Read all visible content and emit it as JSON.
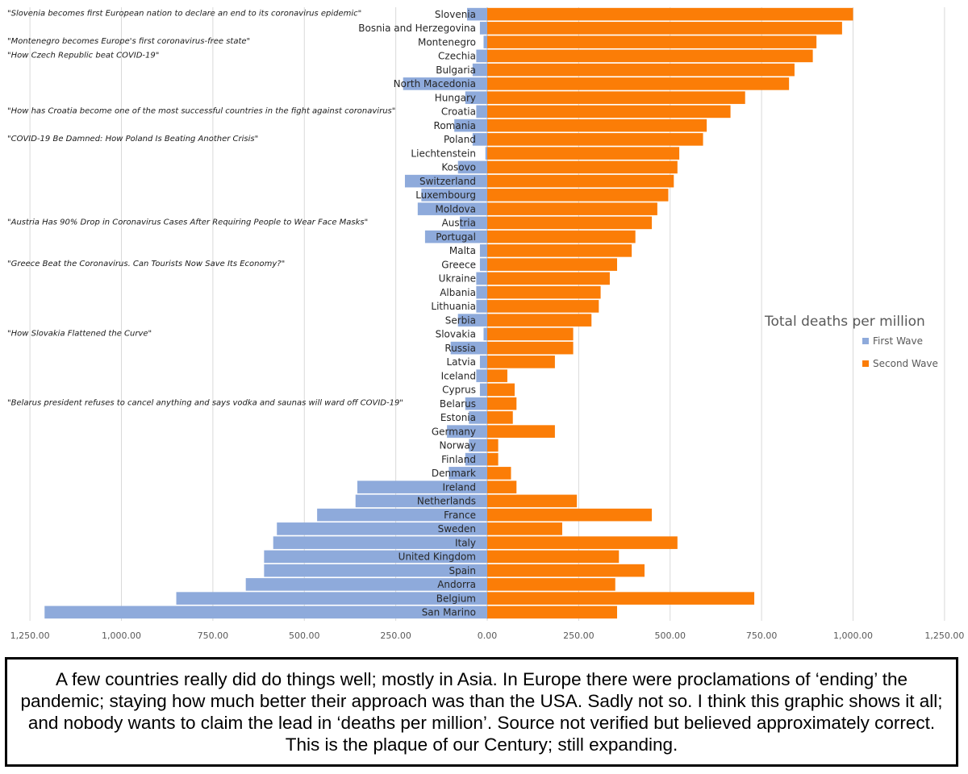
{
  "chart_data": {
    "type": "bar",
    "orientation": "horizontal-diverging",
    "legend_title": "Total deaths per million",
    "series": [
      {
        "name": "First Wave",
        "color": "#8eaadb",
        "direction": "left"
      },
      {
        "name": "Second Wave",
        "color": "#fb7d07",
        "direction": "right"
      }
    ],
    "xlim": [
      -1250,
      1250
    ],
    "xticks": [
      -1250,
      -1000,
      -750,
      -500,
      -250,
      0,
      250,
      500,
      750,
      1000,
      1250
    ],
    "xtick_labels": [
      "1,250.00",
      "1,000.00",
      "750.00",
      "500.00",
      "250.00",
      "0.00",
      "250.00",
      "500.00",
      "750.00",
      "1,000.00",
      "1,250.00"
    ],
    "legend_position": "right",
    "grid": true,
    "rows": [
      {
        "country": "Slovenia",
        "first": 55,
        "second": 1000,
        "quote": "\"Slovenia becomes first European nation to declare an end to its coronavirus epidemic\""
      },
      {
        "country": "Bosnia and Herzegovina",
        "first": 20,
        "second": 970,
        "quote": ""
      },
      {
        "country": "Montenegro",
        "first": 10,
        "second": 900,
        "quote": "\"Montenegro becomes Europe's first coronavirus-free state\""
      },
      {
        "country": "Czechia",
        "first": 30,
        "second": 890,
        "quote": "\"How Czech Republic beat COVID-19\""
      },
      {
        "country": "Bulgaria",
        "first": 40,
        "second": 840,
        "quote": ""
      },
      {
        "country": "North Macedonia",
        "first": 230,
        "second": 825,
        "quote": ""
      },
      {
        "country": "Hungary",
        "first": 60,
        "second": 705,
        "quote": ""
      },
      {
        "country": "Croatia",
        "first": 30,
        "second": 665,
        "quote": "\"How has Croatia become one of the most successful countries in the fight against coronavirus\""
      },
      {
        "country": "Romania",
        "first": 90,
        "second": 600,
        "quote": ""
      },
      {
        "country": "Poland",
        "first": 40,
        "second": 590,
        "quote": "\"COVID-19 Be Damned: How Poland Is Beating Another Crisis\""
      },
      {
        "country": "Liechtenstein",
        "first": 5,
        "second": 525,
        "quote": ""
      },
      {
        "country": "Kosovo",
        "first": 80,
        "second": 520,
        "quote": ""
      },
      {
        "country": "Switzerland",
        "first": 225,
        "second": 510,
        "quote": ""
      },
      {
        "country": "Luxembourg",
        "first": 180,
        "second": 495,
        "quote": ""
      },
      {
        "country": "Moldova",
        "first": 190,
        "second": 465,
        "quote": ""
      },
      {
        "country": "Austria",
        "first": 75,
        "second": 450,
        "quote": "\"Austria Has 90% Drop in Coronavirus Cases After Requiring People to Wear Face Masks\""
      },
      {
        "country": "Portugal",
        "first": 170,
        "second": 405,
        "quote": ""
      },
      {
        "country": "Malta",
        "first": 20,
        "second": 395,
        "quote": ""
      },
      {
        "country": "Greece",
        "first": 20,
        "second": 355,
        "quote": "\"Greece Beat the Coronavirus. Can Tourists Now Save Its Economy?\""
      },
      {
        "country": "Ukraine",
        "first": 30,
        "second": 335,
        "quote": ""
      },
      {
        "country": "Albania",
        "first": 30,
        "second": 310,
        "quote": ""
      },
      {
        "country": "Lithuania",
        "first": 30,
        "second": 305,
        "quote": ""
      },
      {
        "country": "Serbia",
        "first": 80,
        "second": 285,
        "quote": ""
      },
      {
        "country": "Slovakia",
        "first": 10,
        "second": 235,
        "quote": "\"How Slovakia Flattened the Curve\""
      },
      {
        "country": "Russia",
        "first": 100,
        "second": 235,
        "quote": ""
      },
      {
        "country": "Latvia",
        "first": 20,
        "second": 185,
        "quote": ""
      },
      {
        "country": "Iceland",
        "first": 30,
        "second": 55,
        "quote": ""
      },
      {
        "country": "Cyprus",
        "first": 20,
        "second": 75,
        "quote": ""
      },
      {
        "country": "Belarus",
        "first": 60,
        "second": 80,
        "quote": "\"Belarus president refuses to cancel anything and says vodka and saunas will ward off COVID-19\""
      },
      {
        "country": "Estonia",
        "first": 50,
        "second": 70,
        "quote": ""
      },
      {
        "country": "Germany",
        "first": 110,
        "second": 185,
        "quote": ""
      },
      {
        "country": "Norway",
        "first": 50,
        "second": 30,
        "quote": ""
      },
      {
        "country": "Finland",
        "first": 60,
        "second": 30,
        "quote": ""
      },
      {
        "country": "Denmark",
        "first": 105,
        "second": 65,
        "quote": ""
      },
      {
        "country": "Ireland",
        "first": 355,
        "second": 80,
        "quote": ""
      },
      {
        "country": "Netherlands",
        "first": 360,
        "second": 245,
        "quote": ""
      },
      {
        "country": "France",
        "first": 465,
        "second": 450,
        "quote": ""
      },
      {
        "country": "Sweden",
        "first": 575,
        "second": 205,
        "quote": ""
      },
      {
        "country": "Italy",
        "first": 585,
        "second": 520,
        "quote": ""
      },
      {
        "country": "United Kingdom",
        "first": 610,
        "second": 360,
        "quote": ""
      },
      {
        "country": "Spain",
        "first": 610,
        "second": 430,
        "quote": ""
      },
      {
        "country": "Andorra",
        "first": 660,
        "second": 350,
        "quote": ""
      },
      {
        "country": "Belgium",
        "first": 850,
        "second": 730,
        "quote": ""
      },
      {
        "country": "San Marino",
        "first": 1210,
        "second": 355,
        "quote": ""
      }
    ]
  },
  "caption": "A few countries really did do things well; mostly in Asia. In Europe there were proclamations of ‘ending’ the pandemic; staying how much better their approach was than the USA. Sadly not so. I think this graphic shows it all; and nobody wants to claim the lead in ‘deaths per million’. Source not verified but believed approximately correct. This is the plaque of our Century; still expanding."
}
